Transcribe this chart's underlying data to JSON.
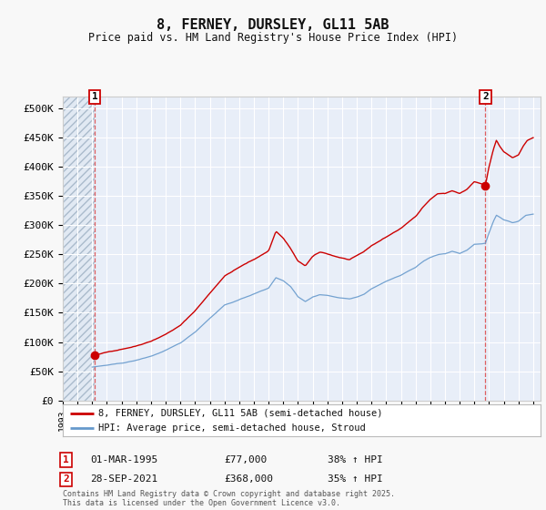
{
  "title": "8, FERNEY, DURSLEY, GL11 5AB",
  "subtitle": "Price paid vs. HM Land Registry's House Price Index (HPI)",
  "background_color": "#f8f8f8",
  "plot_bg_color": "#e8eef8",
  "grid_color": "#ffffff",
  "ylabel": "",
  "ylim": [
    0,
    520000
  ],
  "yticks": [
    0,
    50000,
    100000,
    150000,
    200000,
    250000,
    300000,
    350000,
    400000,
    450000,
    500000
  ],
  "ytick_labels": [
    "£0",
    "£50K",
    "£100K",
    "£150K",
    "£200K",
    "£250K",
    "£300K",
    "£350K",
    "£400K",
    "£450K",
    "£500K"
  ],
  "xlim_start": 1993.0,
  "xlim_end": 2025.5,
  "sale1_year": 1995.17,
  "sale1_price": 77000,
  "sale1_label": "1",
  "sale2_year": 2021.75,
  "sale2_price": 368000,
  "sale2_label": "2",
  "sale1_info": "01-MAR-1995",
  "sale1_price_str": "£77,000",
  "sale1_hpi": "38% ↑ HPI",
  "sale2_info": "28-SEP-2021",
  "sale2_price_str": "£368,000",
  "sale2_hpi": "35% ↑ HPI",
  "legend_line1": "8, FERNEY, DURSLEY, GL11 5AB (semi-detached house)",
  "legend_line2": "HPI: Average price, semi-detached house, Stroud",
  "footer": "Contains HM Land Registry data © Crown copyright and database right 2025.\nThis data is licensed under the Open Government Licence v3.0.",
  "line_color_red": "#cc0000",
  "line_color_blue": "#6699cc"
}
